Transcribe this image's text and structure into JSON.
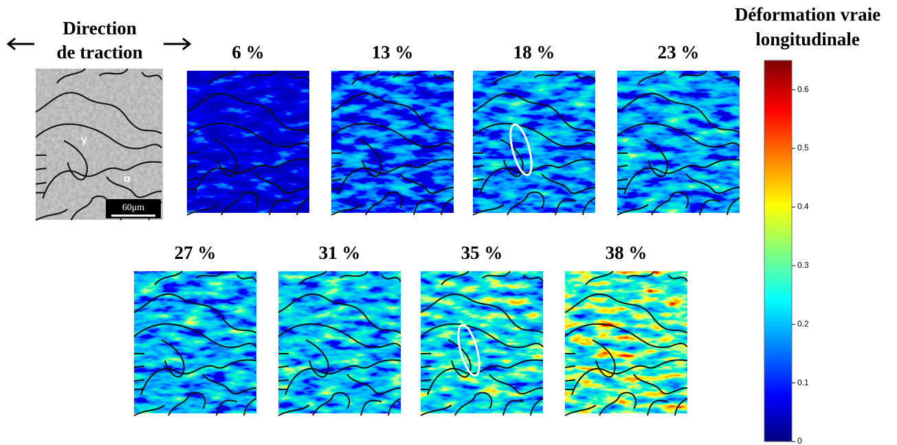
{
  "header": {
    "direction": [
      "Direction",
      "de traction"
    ]
  },
  "micrograph": {
    "phase_1": "γ",
    "phase_2": "α",
    "scale_bar": "60μm"
  },
  "maps": [
    "6 %",
    "13 %",
    "18 %",
    "23 %",
    "27 %",
    "31 %",
    "35 %",
    "38 %"
  ],
  "colorbar": {
    "title": [
      "Déformation vraie",
      "longitudinale"
    ],
    "lim": [
      0,
      0.65
    ],
    "ticks": [
      0,
      0.1,
      0.2,
      0.3,
      0.4,
      0.5,
      0.6
    ]
  }
}
